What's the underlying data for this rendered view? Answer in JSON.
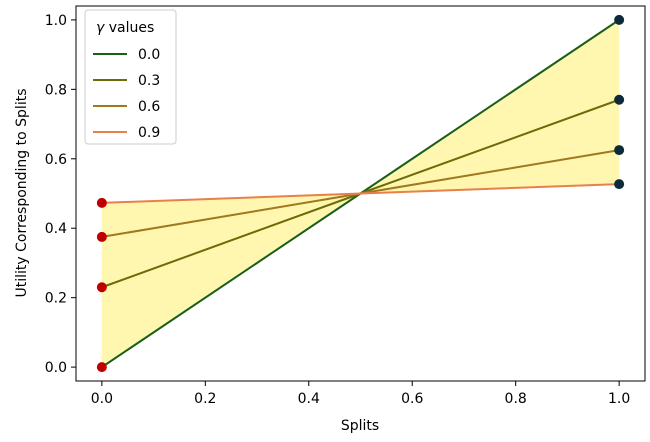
{
  "chart_data": {
    "type": "line",
    "xlabel": "Splits",
    "ylabel": "Utility Corresponding to Splits",
    "xlim": [
      -0.05,
      1.05
    ],
    "ylim": [
      -0.04,
      1.04
    ],
    "x_ticks": [
      0.0,
      0.2,
      0.4,
      0.6,
      0.8,
      1.0
    ],
    "y_ticks": [
      0.0,
      0.2,
      0.4,
      0.6,
      0.8,
      1.0
    ],
    "x_tick_labels": [
      "0.0",
      "0.2",
      "0.4",
      "0.6",
      "0.8",
      "1.0"
    ],
    "y_tick_labels": [
      "0.0",
      "0.2",
      "0.4",
      "0.6",
      "0.8",
      "1.0"
    ],
    "grid": false,
    "legend": {
      "title_symbol": "γ",
      "title_text": " values",
      "placement": "top-left"
    },
    "series": [
      {
        "name": "0.0",
        "color": "#1a5e1a",
        "x": [
          0.0,
          0.5,
          1.0
        ],
        "y": [
          0.0,
          0.5,
          1.0
        ]
      },
      {
        "name": "0.3",
        "color": "#6b6b08",
        "x": [
          0.0,
          0.5,
          1.0
        ],
        "y": [
          0.23,
          0.5,
          0.77
        ]
      },
      {
        "name": "0.6",
        "color": "#a0781e",
        "x": [
          0.0,
          0.5,
          1.0
        ],
        "y": [
          0.375,
          0.5,
          0.625
        ]
      },
      {
        "name": "0.9",
        "color": "#e8804a",
        "x": [
          0.0,
          0.5,
          1.0
        ],
        "y": [
          0.473,
          0.5,
          0.527
        ]
      }
    ],
    "fill": {
      "color": "#fff6b0",
      "between": [
        "0.0",
        "0.9"
      ]
    },
    "endpoint_markers": {
      "left_color": "#c00000",
      "right_color": "#0e2a3a"
    }
  }
}
